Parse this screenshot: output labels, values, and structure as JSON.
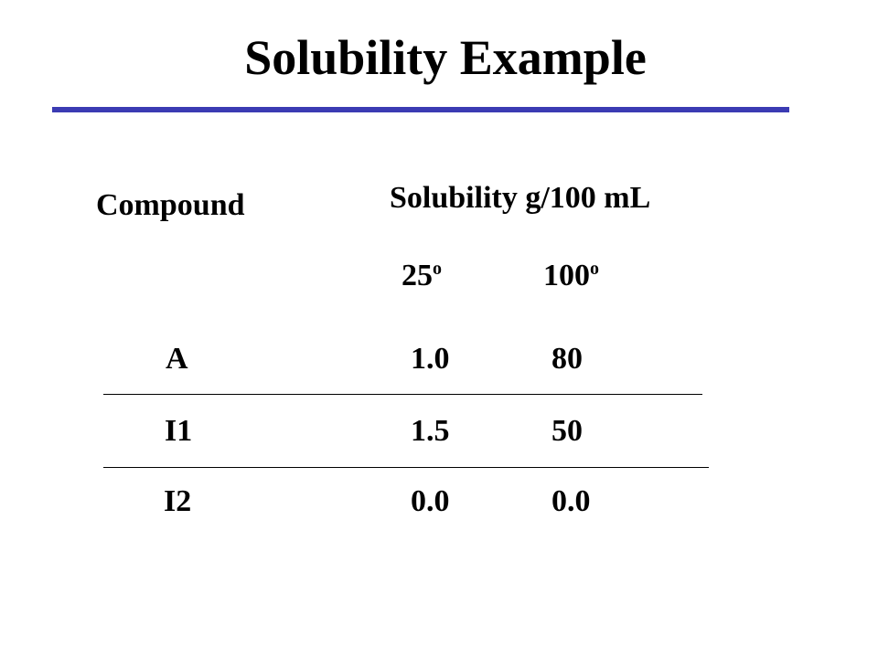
{
  "slide": {
    "title": "Solubility Example",
    "accent_color": "#3b3bb3"
  },
  "table": {
    "compound_header": "Compound",
    "solubility_header": "Solubility g/100 mL",
    "temperatures": [
      {
        "value": "25",
        "unit_superscript": "o"
      },
      {
        "value": "100",
        "unit_superscript": "o"
      }
    ],
    "rows": [
      {
        "compound": "A",
        "sol_25": "1.0",
        "sol_100": "80"
      },
      {
        "compound": "I1",
        "sol_25": "1.5",
        "sol_100": "50"
      },
      {
        "compound": "I2",
        "sol_25": "0.0",
        "sol_100": "0.0"
      }
    ]
  }
}
